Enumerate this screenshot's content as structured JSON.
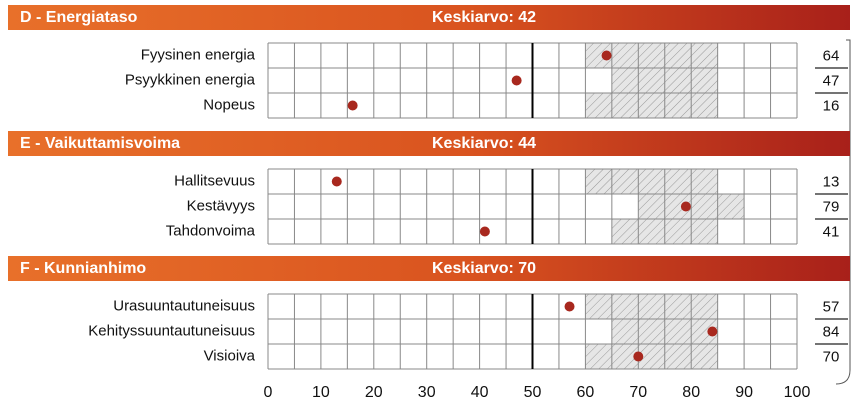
{
  "chart_data": {
    "type": "dot",
    "xlim": [
      0,
      100
    ],
    "xticks": [
      0,
      10,
      20,
      30,
      40,
      50,
      60,
      70,
      80,
      90,
      100
    ],
    "minor_xticks": [
      5,
      15,
      25,
      35,
      45,
      55,
      65,
      75,
      85,
      95
    ],
    "reference_line": 50,
    "color": "#a8281e",
    "sections": [
      {
        "title": "D - Energiataso",
        "average": "Keskiarvo: 42",
        "rows": [
          {
            "label": "Fyysinen energia",
            "value": 64,
            "range": [
              60,
              85
            ]
          },
          {
            "label": "Psyykkinen energia",
            "value": 47,
            "range": [
              65,
              85
            ]
          },
          {
            "label": "Nopeus",
            "value": 16,
            "range": [
              60,
              85
            ]
          }
        ]
      },
      {
        "title": "E - Vaikuttamisvoima",
        "average": "Keskiarvo: 44",
        "rows": [
          {
            "label": "Hallitsevuus",
            "value": 13,
            "range": [
              60,
              85
            ]
          },
          {
            "label": "Kestävyys",
            "value": 79,
            "range": [
              70,
              90
            ]
          },
          {
            "label": "Tahdonvoima",
            "value": 41,
            "range": [
              65,
              85
            ]
          }
        ]
      },
      {
        "title": "F - Kunnianhimo",
        "average": "Keskiarvo: 70",
        "rows": [
          {
            "label": "Urasuuntautuneisuus",
            "value": 57,
            "range": [
              60,
              85
            ]
          },
          {
            "label": "Kehityssuuntautuneisuus",
            "value": 84,
            "range": [
              65,
              85
            ]
          },
          {
            "label": "Visioiva",
            "value": 70,
            "range": [
              60,
              85
            ]
          }
        ]
      }
    ]
  }
}
